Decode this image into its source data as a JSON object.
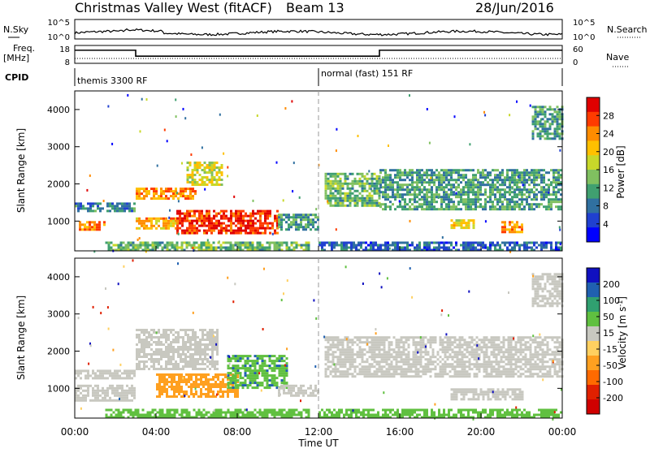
{
  "header": {
    "title": "Christmas Valley West (fitACF)",
    "beam": "Beam 13",
    "date": "28/Jun/2016"
  },
  "noise_panel": {
    "left_label": "N.Sky",
    "right_label": "N.Search",
    "left_ticks": [
      "10^5",
      "10^0"
    ],
    "right_ticks": [
      "10^5",
      "10^0"
    ]
  },
  "freq_panel": {
    "left_label_1": "Freq.",
    "left_label_2": "[MHz]",
    "right_label": "Nave",
    "left_ticks": [
      "18",
      "8"
    ],
    "right_ticks": [
      "60",
      "0"
    ],
    "cpid_label": "CPID",
    "cpid_segments": [
      {
        "start_hour": 0,
        "text": "themis 3300 RF"
      },
      {
        "start_hour": 12,
        "text": "normal (fast) 151 RF"
      }
    ],
    "frequency_steps": [
      {
        "from_hour": 0,
        "to_hour": 3,
        "mhz": 16
      },
      {
        "from_hour": 3,
        "to_hour": 15,
        "mhz": 11
      },
      {
        "from_hour": 15,
        "to_hour": 24,
        "mhz": 16
      }
    ]
  },
  "power_colorbar": {
    "label": "Power [dB]",
    "ticks": [
      "28",
      "24",
      "20",
      "16",
      "12",
      "8",
      "4"
    ],
    "colors": [
      "#e00000",
      "#ff3b00",
      "#ff8c00",
      "#ffc000",
      "#c8d82a",
      "#80c060",
      "#40a070",
      "#3070a0",
      "#2040d0",
      "#0000ff"
    ]
  },
  "velocity_colorbar": {
    "label": "Velocity [m s^-1]",
    "ticks": [
      "200",
      "100",
      "50",
      "15",
      "-15",
      "-50",
      "-100",
      "-200"
    ],
    "colors": [
      "#1010c0",
      "#2060b0",
      "#30a070",
      "#60c040",
      "#c8c8c0",
      "#ffd060",
      "#ffa020",
      "#ff6a00",
      "#e02000",
      "#d00000"
    ]
  },
  "chart_data": [
    {
      "type": "heatmap",
      "title": "Power",
      "xlabel": "Time UT",
      "ylabel": "Slant Range [km]",
      "xlim": [
        0,
        24
      ],
      "ylim": [
        200,
        4500
      ],
      "y_ticks": [
        "1000",
        "2000",
        "3000",
        "4000"
      ],
      "x_ticks": [
        "00:00",
        "04:00",
        "08:00",
        "12:00",
        "16:00",
        "20:00",
        "00:00"
      ],
      "regions": [
        {
          "t0": 0.2,
          "t1": 1.5,
          "r0": 750,
          "r1": 1000,
          "power": 24
        },
        {
          "t0": 0.0,
          "t1": 3.0,
          "r0": 1300,
          "r1": 1500,
          "power": 10
        },
        {
          "t0": 3.0,
          "t1": 5.0,
          "r0": 800,
          "r1": 1100,
          "power": 22
        },
        {
          "t0": 5.0,
          "t1": 10.0,
          "r0": 700,
          "r1": 1300,
          "power": 28
        },
        {
          "t0": 3.0,
          "t1": 6.0,
          "r0": 1600,
          "r1": 1900,
          "power": 24
        },
        {
          "t0": 5.5,
          "t1": 7.2,
          "r0": 2000,
          "r1": 2600,
          "power": 18
        },
        {
          "t0": 10.0,
          "t1": 12.0,
          "r0": 800,
          "r1": 1200,
          "power": 12
        },
        {
          "t0": 1.5,
          "t1": 11.5,
          "r0": 250,
          "r1": 450,
          "power": 14
        },
        {
          "t0": 12.3,
          "t1": 15.0,
          "r0": 1400,
          "r1": 2300,
          "power": 14
        },
        {
          "t0": 15.0,
          "t1": 24.0,
          "r0": 1300,
          "r1": 2400,
          "power": 12
        },
        {
          "t0": 18.5,
          "t1": 19.6,
          "r0": 800,
          "r1": 1050,
          "power": 20
        },
        {
          "t0": 21.0,
          "t1": 22.0,
          "r0": 700,
          "r1": 1000,
          "power": 24
        },
        {
          "t0": 22.5,
          "t1": 24.0,
          "r0": 3200,
          "r1": 4100,
          "power": 12
        },
        {
          "t0": 12.0,
          "t1": 24.0,
          "r0": 200,
          "r1": 450,
          "power": 8
        }
      ]
    },
    {
      "type": "heatmap",
      "title": "Velocity",
      "xlabel": "Time UT",
      "ylabel": "Slant Range [km]",
      "xlim": [
        0,
        24
      ],
      "ylim": [
        200,
        4500
      ],
      "y_ticks": [
        "1000",
        "2000",
        "3000",
        "4000"
      ],
      "x_ticks": [
        "00:00",
        "04:00",
        "08:00",
        "12:00",
        "16:00",
        "20:00",
        "00:00"
      ],
      "regions": [
        {
          "t0": 0.0,
          "t1": 3.0,
          "r0": 700,
          "r1": 1100,
          "velocity": 0
        },
        {
          "t0": 0.0,
          "t1": 3.0,
          "r0": 1300,
          "r1": 1500,
          "velocity": 0
        },
        {
          "t0": 3.0,
          "t1": 7.0,
          "r0": 1500,
          "r1": 2600,
          "velocity": 0
        },
        {
          "t0": 4.0,
          "t1": 8.0,
          "r0": 800,
          "r1": 1400,
          "velocity": -80
        },
        {
          "t0": 7.5,
          "t1": 10.5,
          "r0": 1000,
          "r1": 1900,
          "velocity": 40
        },
        {
          "t0": 10.0,
          "t1": 12.0,
          "r0": 800,
          "r1": 1100,
          "velocity": 0
        },
        {
          "t0": 1.5,
          "t1": 11.5,
          "r0": 250,
          "r1": 450,
          "velocity": 30
        },
        {
          "t0": 12.3,
          "t1": 24.0,
          "r0": 1300,
          "r1": 2400,
          "velocity": 0
        },
        {
          "t0": 18.5,
          "t1": 22.0,
          "r0": 700,
          "r1": 1000,
          "velocity": 0
        },
        {
          "t0": 22.5,
          "t1": 24.0,
          "r0": 3200,
          "r1": 4100,
          "velocity": 0
        },
        {
          "t0": 12.0,
          "t1": 24.0,
          "r0": 200,
          "r1": 450,
          "velocity": 30
        }
      ]
    }
  ]
}
